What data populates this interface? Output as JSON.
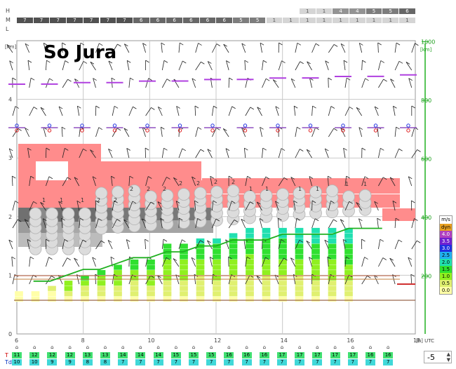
{
  "station": {
    "name": "So Jura"
  },
  "cloud_layers": {
    "labels": [
      "H",
      "M",
      "L"
    ],
    "H": [
      "",
      "",
      "",
      "",
      "",
      "",
      "",
      "",
      "",
      "",
      "",
      "",
      "",
      "",
      "",
      "",
      "",
      "1",
      "1",
      "4",
      "4",
      "5",
      "5",
      "6"
    ],
    "M": [
      "7",
      "7",
      "7",
      "7",
      "7",
      "7",
      "7",
      "6",
      "6",
      "6",
      "6",
      "6",
      "6",
      "5",
      "5",
      "1",
      "1",
      "1",
      "1",
      "1",
      "1",
      "1",
      "1",
      "1"
    ],
    "L": [
      "",
      "",
      "",
      "",
      "",
      "",
      "",
      "",
      "",
      "",
      "",
      "",
      "",
      "",
      "",
      "",
      "",
      "",
      "",
      "",
      "",
      "",
      "",
      ""
    ]
  },
  "left_axis": {
    "unit": "[km]",
    "ticks": [
      "0",
      "1",
      "2",
      "3",
      "4"
    ]
  },
  "right_axis": {
    "unit": "[km]",
    "ticks": [
      "200",
      "400",
      "600",
      "800",
      "1000"
    ]
  },
  "x_axis": {
    "ticks": [
      "6",
      "8",
      "10",
      "12",
      "14",
      "16",
      "18"
    ],
    "unit": "[h] UTC"
  },
  "legend": {
    "title": "m/s",
    "items": [
      {
        "label": "dyn",
        "color": "#e8a020"
      },
      {
        "label": "4.0",
        "color": "#b040c0"
      },
      {
        "label": "3.5",
        "color": "#7020d0"
      },
      {
        "label": "3.0",
        "color": "#2030e0"
      },
      {
        "label": "2.5",
        "color": "#20b0f0"
      },
      {
        "label": "2.0",
        "color": "#20e0b0"
      },
      {
        "label": "1.5",
        "color": "#30e030"
      },
      {
        "label": "1.0",
        "color": "#90f020"
      },
      {
        "label": "0.5",
        "color": "#e0f070"
      },
      {
        "label": "0.0",
        "color": "#ffffa8"
      }
    ]
  },
  "row_labels": {
    "T": "T",
    "Td": "Td"
  },
  "temperature_row": [
    "11",
    "12",
    "12",
    "12",
    "13",
    "13",
    "14",
    "14",
    "14",
    "15",
    "15",
    "15",
    "16",
    "16",
    "16",
    "17",
    "17",
    "17",
    "17",
    "17",
    "16",
    "16"
  ],
  "dewpoint_row": [
    "10",
    "10",
    "9",
    "9",
    "8",
    "8",
    "7",
    "7",
    "7",
    "7",
    "7",
    "7",
    "7",
    "7",
    "7",
    "7",
    "7",
    "7",
    "7",
    "7",
    "7",
    "7"
  ],
  "stepper": {
    "value": "-5",
    "up": "▲",
    "down": "▼"
  },
  "chart_data": {
    "type": "line",
    "title": "So Jura",
    "xlabel": "[h] UTC",
    "ylabel": "[km]",
    "xlim": [
      6,
      18
    ],
    "ylim": [
      0,
      5
    ],
    "series": [
      {
        "x": [
          6.5,
          7.0,
          7.5,
          8.0,
          8.5,
          9.0,
          9.5,
          10.0,
          10.5,
          11.0,
          11.5,
          12.0,
          12.5,
          13.0,
          13.5,
          14.0,
          14.5,
          15.0,
          15.5,
          16.0,
          16.5,
          17.0
        ],
        "values": [
          0.9,
          0.9,
          1.0,
          1.1,
          1.1,
          1.2,
          1.3,
          1.3,
          1.4,
          1.4,
          1.5,
          1.5,
          1.6,
          1.6,
          1.6,
          1.7,
          1.7,
          1.7,
          1.7,
          1.8,
          1.8,
          1.8
        ]
      }
    ],
    "top_of_thermals_km": [
      0.7,
      0.7,
      0.8,
      0.9,
      1.0,
      1.1,
      1.2,
      1.3,
      1.3,
      1.5,
      1.5,
      1.6,
      1.6,
      1.7,
      1.8,
      1.8,
      1.8,
      1.8,
      1.8,
      1.8,
      1.8
    ]
  }
}
